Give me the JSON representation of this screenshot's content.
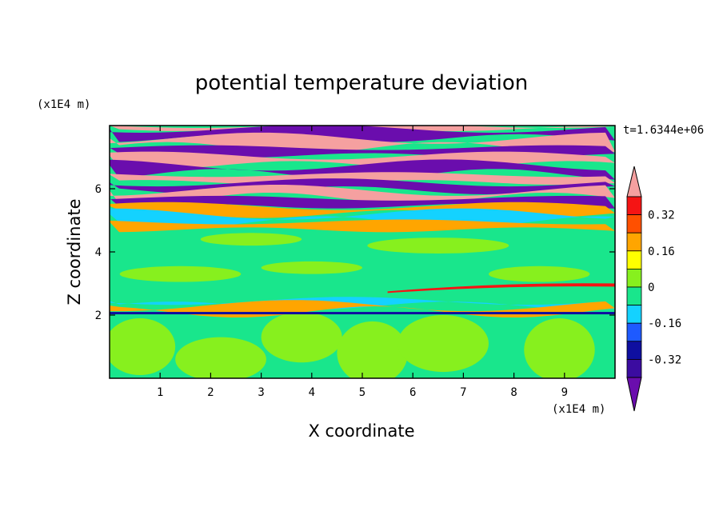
{
  "chart_data": {
    "type": "heatmap",
    "title": "potential temperature deviation",
    "xlabel": "X coordinate",
    "ylabel": "Z coordinate",
    "x_unit": "(x1E4 m)",
    "y_unit": "(x1E4 m)",
    "time_label": "t=1.6344e+06",
    "xlim": [
      0,
      10
    ],
    "ylim": [
      0,
      8
    ],
    "x_ticks": [
      "1",
      "2",
      "3",
      "4",
      "5",
      "6",
      "7",
      "8",
      "9"
    ],
    "y_ticks": [
      "2",
      "4",
      "6"
    ],
    "colorbar": {
      "levels": [
        -0.4,
        -0.32,
        -0.24,
        -0.16,
        -0.08,
        0,
        0.08,
        0.16,
        0.24,
        0.32,
        0.4
      ],
      "labels": [
        "0.32",
        "0.16",
        "0",
        "-0.16",
        "-0.32"
      ],
      "label_values": [
        0.32,
        0.16,
        0,
        -0.16,
        -0.32
      ],
      "colors": [
        "#6a0dad",
        "#3b0ca0",
        "#0f0fa0",
        "#1e5aff",
        "#14d2ff",
        "#19e68c",
        "#87f01e",
        "#ffff00",
        "#ffa500",
        "#ff5000",
        "#f51414",
        "#f5a0a0"
      ]
    },
    "bands": [
      {
        "z": [
          7.9,
          8.0
        ],
        "class": "max"
      },
      {
        "z": [
          7.6,
          7.9
        ],
        "class": "min"
      },
      {
        "z": [
          7.3,
          7.6
        ],
        "class": "max"
      },
      {
        "z": [
          7.05,
          7.3
        ],
        "class": "min"
      },
      {
        "z": [
          6.75,
          7.05
        ],
        "class": "max"
      },
      {
        "z": [
          6.45,
          6.75
        ],
        "class": "min"
      },
      {
        "z": [
          6.2,
          6.45
        ],
        "class": "max"
      },
      {
        "z": [
          5.95,
          6.2
        ],
        "class": "min"
      },
      {
        "z": [
          5.7,
          5.95
        ],
        "class": "max"
      },
      {
        "z": [
          5.45,
          5.7
        ],
        "class": "min"
      },
      {
        "z": [
          5.2,
          5.45
        ],
        "class": "warm"
      },
      {
        "z": [
          4.95,
          5.2
        ],
        "class": "cool"
      },
      {
        "z": [
          4.7,
          4.95
        ],
        "class": "warm"
      },
      {
        "z": [
          2.3,
          2.45
        ],
        "class": "cool"
      },
      {
        "z": [
          2.1,
          2.3
        ],
        "class": "warm"
      }
    ]
  }
}
